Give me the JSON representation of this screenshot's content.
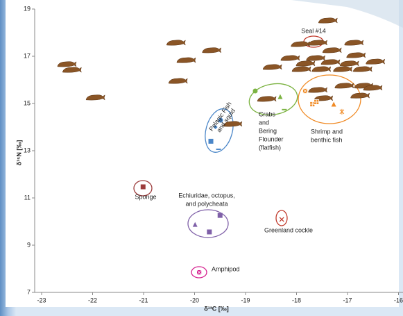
{
  "chart_data": {
    "type": "scatter",
    "xlabel": "δ¹³C [‰]",
    "ylabel": "δ¹⁵N [‰]",
    "xlim": [
      -23,
      -16
    ],
    "ylim": [
      7,
      19
    ],
    "xticks": [
      -23,
      -22,
      -21,
      -20,
      -19,
      -18,
      -17,
      -16
    ],
    "yticks": [
      7,
      9,
      11,
      13,
      15,
      17,
      19
    ],
    "series": [
      {
        "color": "#8a5526",
        "marker": "seal",
        "x": [
          -22.51,
          -22.41,
          -21.95,
          -20.37,
          -20.17,
          -19.67,
          -20.33,
          -18.48,
          -18.59,
          -19.26,
          -17.39,
          -17.93,
          -17.59,
          -17.31,
          -16.88,
          -17.63,
          -18.13,
          -17.83,
          -17.34,
          -16.97,
          -16.46,
          -17.91,
          -17.52,
          -17.1,
          -16.71,
          -16.84,
          -17.59,
          -17.07,
          -16.69,
          -16.51,
          -17.48,
          -16.76
        ],
        "values": [
          16.65,
          16.41,
          15.24,
          17.56,
          16.82,
          17.24,
          15.94,
          16.53,
          15.18,
          14.12,
          18.5,
          17.5,
          17.56,
          17.24,
          17.56,
          16.91,
          16.91,
          16.68,
          16.74,
          16.68,
          16.76,
          16.44,
          16.44,
          16.44,
          16.44,
          17.03,
          15.56,
          15.74,
          15.74,
          15.65,
          15.21,
          15.32
        ]
      },
      {
        "color": "#4a86c8",
        "markers": [
          "circle",
          "diamond",
          "square",
          "dash"
        ],
        "x": [
          -19.49,
          -19.59,
          -19.68,
          -19.53
        ],
        "values": [
          14.29,
          14.0,
          13.4,
          13.06
        ]
      },
      {
        "color": "#7cb342",
        "markers": [
          "circle",
          "triangle",
          "dash"
        ],
        "x": [
          -18.81,
          -18.32,
          -18.24
        ],
        "values": [
          15.53,
          15.29,
          14.74
        ]
      },
      {
        "color": "#f08a24",
        "markers": [
          "xsquare",
          "plussquare",
          "plussquare",
          "triangle",
          "star"
        ],
        "x": [
          -17.83,
          -17.69,
          -17.61,
          -17.27,
          -17.11
        ],
        "values": [
          15.53,
          14.97,
          15.06,
          14.97,
          14.65
        ]
      },
      {
        "color": "#9c3b3b",
        "markers": [
          "square"
        ],
        "x": [
          -21.01
        ],
        "values": [
          11.47
        ]
      },
      {
        "color": "#7f60a8",
        "markers": [
          "triangle",
          "square",
          "square"
        ],
        "x": [
          -19.99,
          -19.5,
          -19.71
        ],
        "values": [
          9.88,
          10.26,
          9.56
        ]
      },
      {
        "color": "#c0392b",
        "markers": [
          "x"
        ],
        "x": [
          -18.29
        ],
        "values": [
          10.09
        ]
      },
      {
        "color": "#d6218f",
        "markers": [
          "xsquare"
        ],
        "x": [
          -19.91
        ],
        "values": [
          7.85
        ]
      }
    ],
    "annotations": [
      {
        "lines": [
          "Seal #14"
        ],
        "color": "#222222"
      },
      {
        "lines": [
          "Pelagic Fish",
          "and squid"
        ],
        "color": "#4a86c8"
      },
      {
        "lines": [
          "Crabs",
          "and",
          "Bering",
          "Flounder",
          "(flatfish)"
        ],
        "color": "#7cb342"
      },
      {
        "lines": [
          "Shrimp and",
          "benthic fish"
        ],
        "color": "#f08a24"
      },
      {
        "lines": [
          "Sponge"
        ],
        "color": "#9c3b3b"
      },
      {
        "lines": [
          "Echiuridae, octopus,",
          "and polycheata"
        ],
        "color": "#7f60a8"
      },
      {
        "lines": [
          "Greenland cockle"
        ],
        "color": "#c0392b"
      },
      {
        "lines": [
          "Amphipod"
        ],
        "color": "#d6218f"
      }
    ]
  }
}
